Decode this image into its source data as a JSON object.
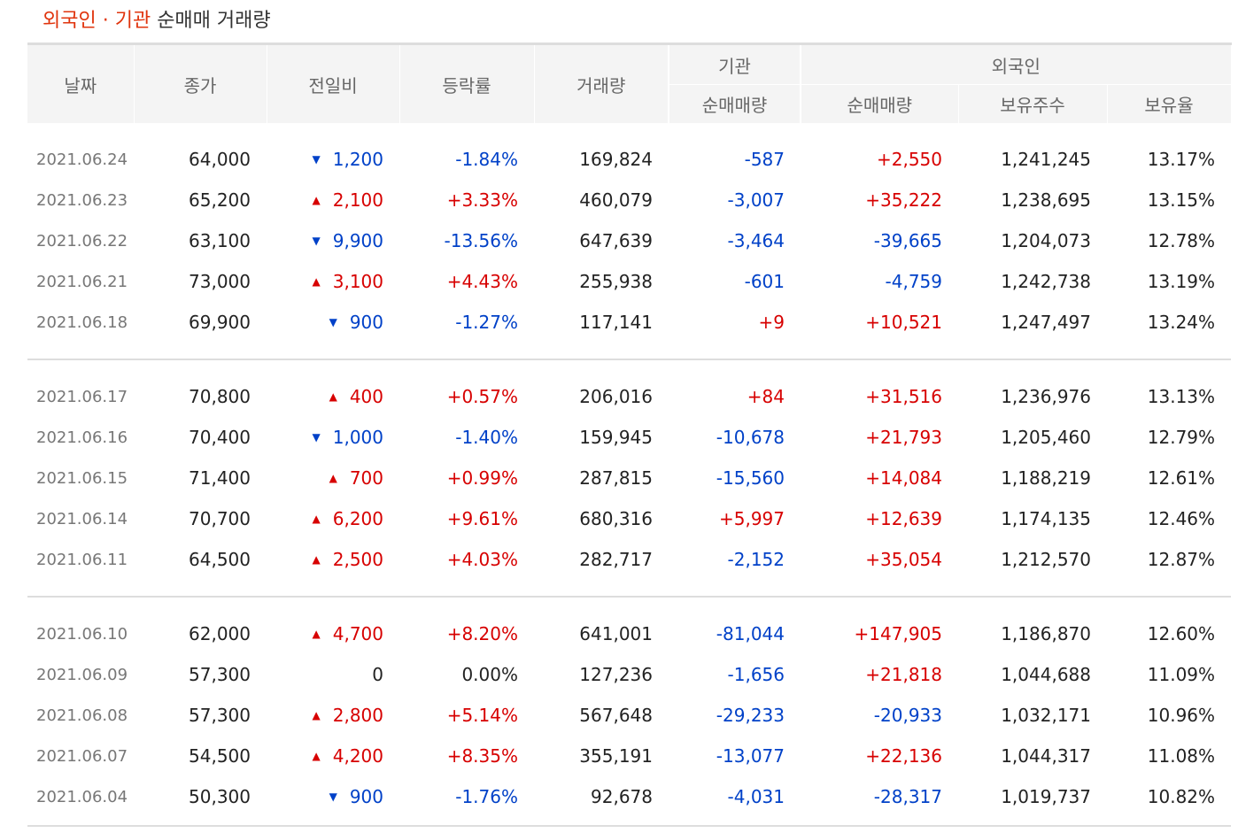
{
  "header": {
    "title_highlight": "외국인 · 기관",
    "title_rest": "순매매 거래량"
  },
  "columns": {
    "date": "날짜",
    "close": "종가",
    "change": "전일비",
    "rate": "등락률",
    "volume": "거래량",
    "institution_group": "기관",
    "foreign_group": "외국인",
    "inst_net": "순매매량",
    "foreign_net": "순매매량",
    "foreign_holdings": "보유주수",
    "foreign_ratio": "보유율"
  },
  "colors": {
    "up": "#d70000",
    "down": "#0041c8",
    "title_accent": "#e0340d"
  },
  "icons": {
    "up": "▲",
    "down": "▼"
  },
  "groups": [
    {
      "rows": [
        {
          "date": "2021.06.24",
          "close": "64,000",
          "dir": "down",
          "change": "1,200",
          "rate": "-1.84%",
          "volume": "169,824",
          "inst": "-587",
          "foreign": "+2,550",
          "holdings": "1,241,245",
          "ratio": "13.17%"
        },
        {
          "date": "2021.06.23",
          "close": "65,200",
          "dir": "up",
          "change": "2,100",
          "rate": "+3.33%",
          "volume": "460,079",
          "inst": "-3,007",
          "foreign": "+35,222",
          "holdings": "1,238,695",
          "ratio": "13.15%"
        },
        {
          "date": "2021.06.22",
          "close": "63,100",
          "dir": "down",
          "change": "9,900",
          "rate": "-13.56%",
          "volume": "647,639",
          "inst": "-3,464",
          "foreign": "-39,665",
          "holdings": "1,204,073",
          "ratio": "12.78%"
        },
        {
          "date": "2021.06.21",
          "close": "73,000",
          "dir": "up",
          "change": "3,100",
          "rate": "+4.43%",
          "volume": "255,938",
          "inst": "-601",
          "foreign": "-4,759",
          "holdings": "1,242,738",
          "ratio": "13.19%"
        },
        {
          "date": "2021.06.18",
          "close": "69,900",
          "dir": "down",
          "change": "900",
          "rate": "-1.27%",
          "volume": "117,141",
          "inst": "+9",
          "foreign": "+10,521",
          "holdings": "1,247,497",
          "ratio": "13.24%"
        }
      ]
    },
    {
      "rows": [
        {
          "date": "2021.06.17",
          "close": "70,800",
          "dir": "up",
          "change": "400",
          "rate": "+0.57%",
          "volume": "206,016",
          "inst": "+84",
          "foreign": "+31,516",
          "holdings": "1,236,976",
          "ratio": "13.13%"
        },
        {
          "date": "2021.06.16",
          "close": "70,400",
          "dir": "down",
          "change": "1,000",
          "rate": "-1.40%",
          "volume": "159,945",
          "inst": "-10,678",
          "foreign": "+21,793",
          "holdings": "1,205,460",
          "ratio": "12.79%"
        },
        {
          "date": "2021.06.15",
          "close": "71,400",
          "dir": "up",
          "change": "700",
          "rate": "+0.99%",
          "volume": "287,815",
          "inst": "-15,560",
          "foreign": "+14,084",
          "holdings": "1,188,219",
          "ratio": "12.61%"
        },
        {
          "date": "2021.06.14",
          "close": "70,700",
          "dir": "up",
          "change": "6,200",
          "rate": "+9.61%",
          "volume": "680,316",
          "inst": "+5,997",
          "foreign": "+12,639",
          "holdings": "1,174,135",
          "ratio": "12.46%"
        },
        {
          "date": "2021.06.11",
          "close": "64,500",
          "dir": "up",
          "change": "2,500",
          "rate": "+4.03%",
          "volume": "282,717",
          "inst": "-2,152",
          "foreign": "+35,054",
          "holdings": "1,212,570",
          "ratio": "12.87%"
        }
      ]
    },
    {
      "rows": [
        {
          "date": "2021.06.10",
          "close": "62,000",
          "dir": "up",
          "change": "4,700",
          "rate": "+8.20%",
          "volume": "641,001",
          "inst": "-81,044",
          "foreign": "+147,905",
          "holdings": "1,186,870",
          "ratio": "12.60%"
        },
        {
          "date": "2021.06.09",
          "close": "57,300",
          "dir": "none",
          "change": "0",
          "rate": "0.00%",
          "volume": "127,236",
          "inst": "-1,656",
          "foreign": "+21,818",
          "holdings": "1,044,688",
          "ratio": "11.09%"
        },
        {
          "date": "2021.06.08",
          "close": "57,300",
          "dir": "up",
          "change": "2,800",
          "rate": "+5.14%",
          "volume": "567,648",
          "inst": "-29,233",
          "foreign": "-20,933",
          "holdings": "1,032,171",
          "ratio": "10.96%"
        },
        {
          "date": "2021.06.07",
          "close": "54,500",
          "dir": "up",
          "change": "4,200",
          "rate": "+8.35%",
          "volume": "355,191",
          "inst": "-13,077",
          "foreign": "+22,136",
          "holdings": "1,044,317",
          "ratio": "11.08%"
        },
        {
          "date": "2021.06.04",
          "close": "50,300",
          "dir": "down",
          "change": "900",
          "rate": "-1.76%",
          "volume": "92,678",
          "inst": "-4,031",
          "foreign": "-28,317",
          "holdings": "1,019,737",
          "ratio": "10.82%"
        }
      ]
    }
  ]
}
